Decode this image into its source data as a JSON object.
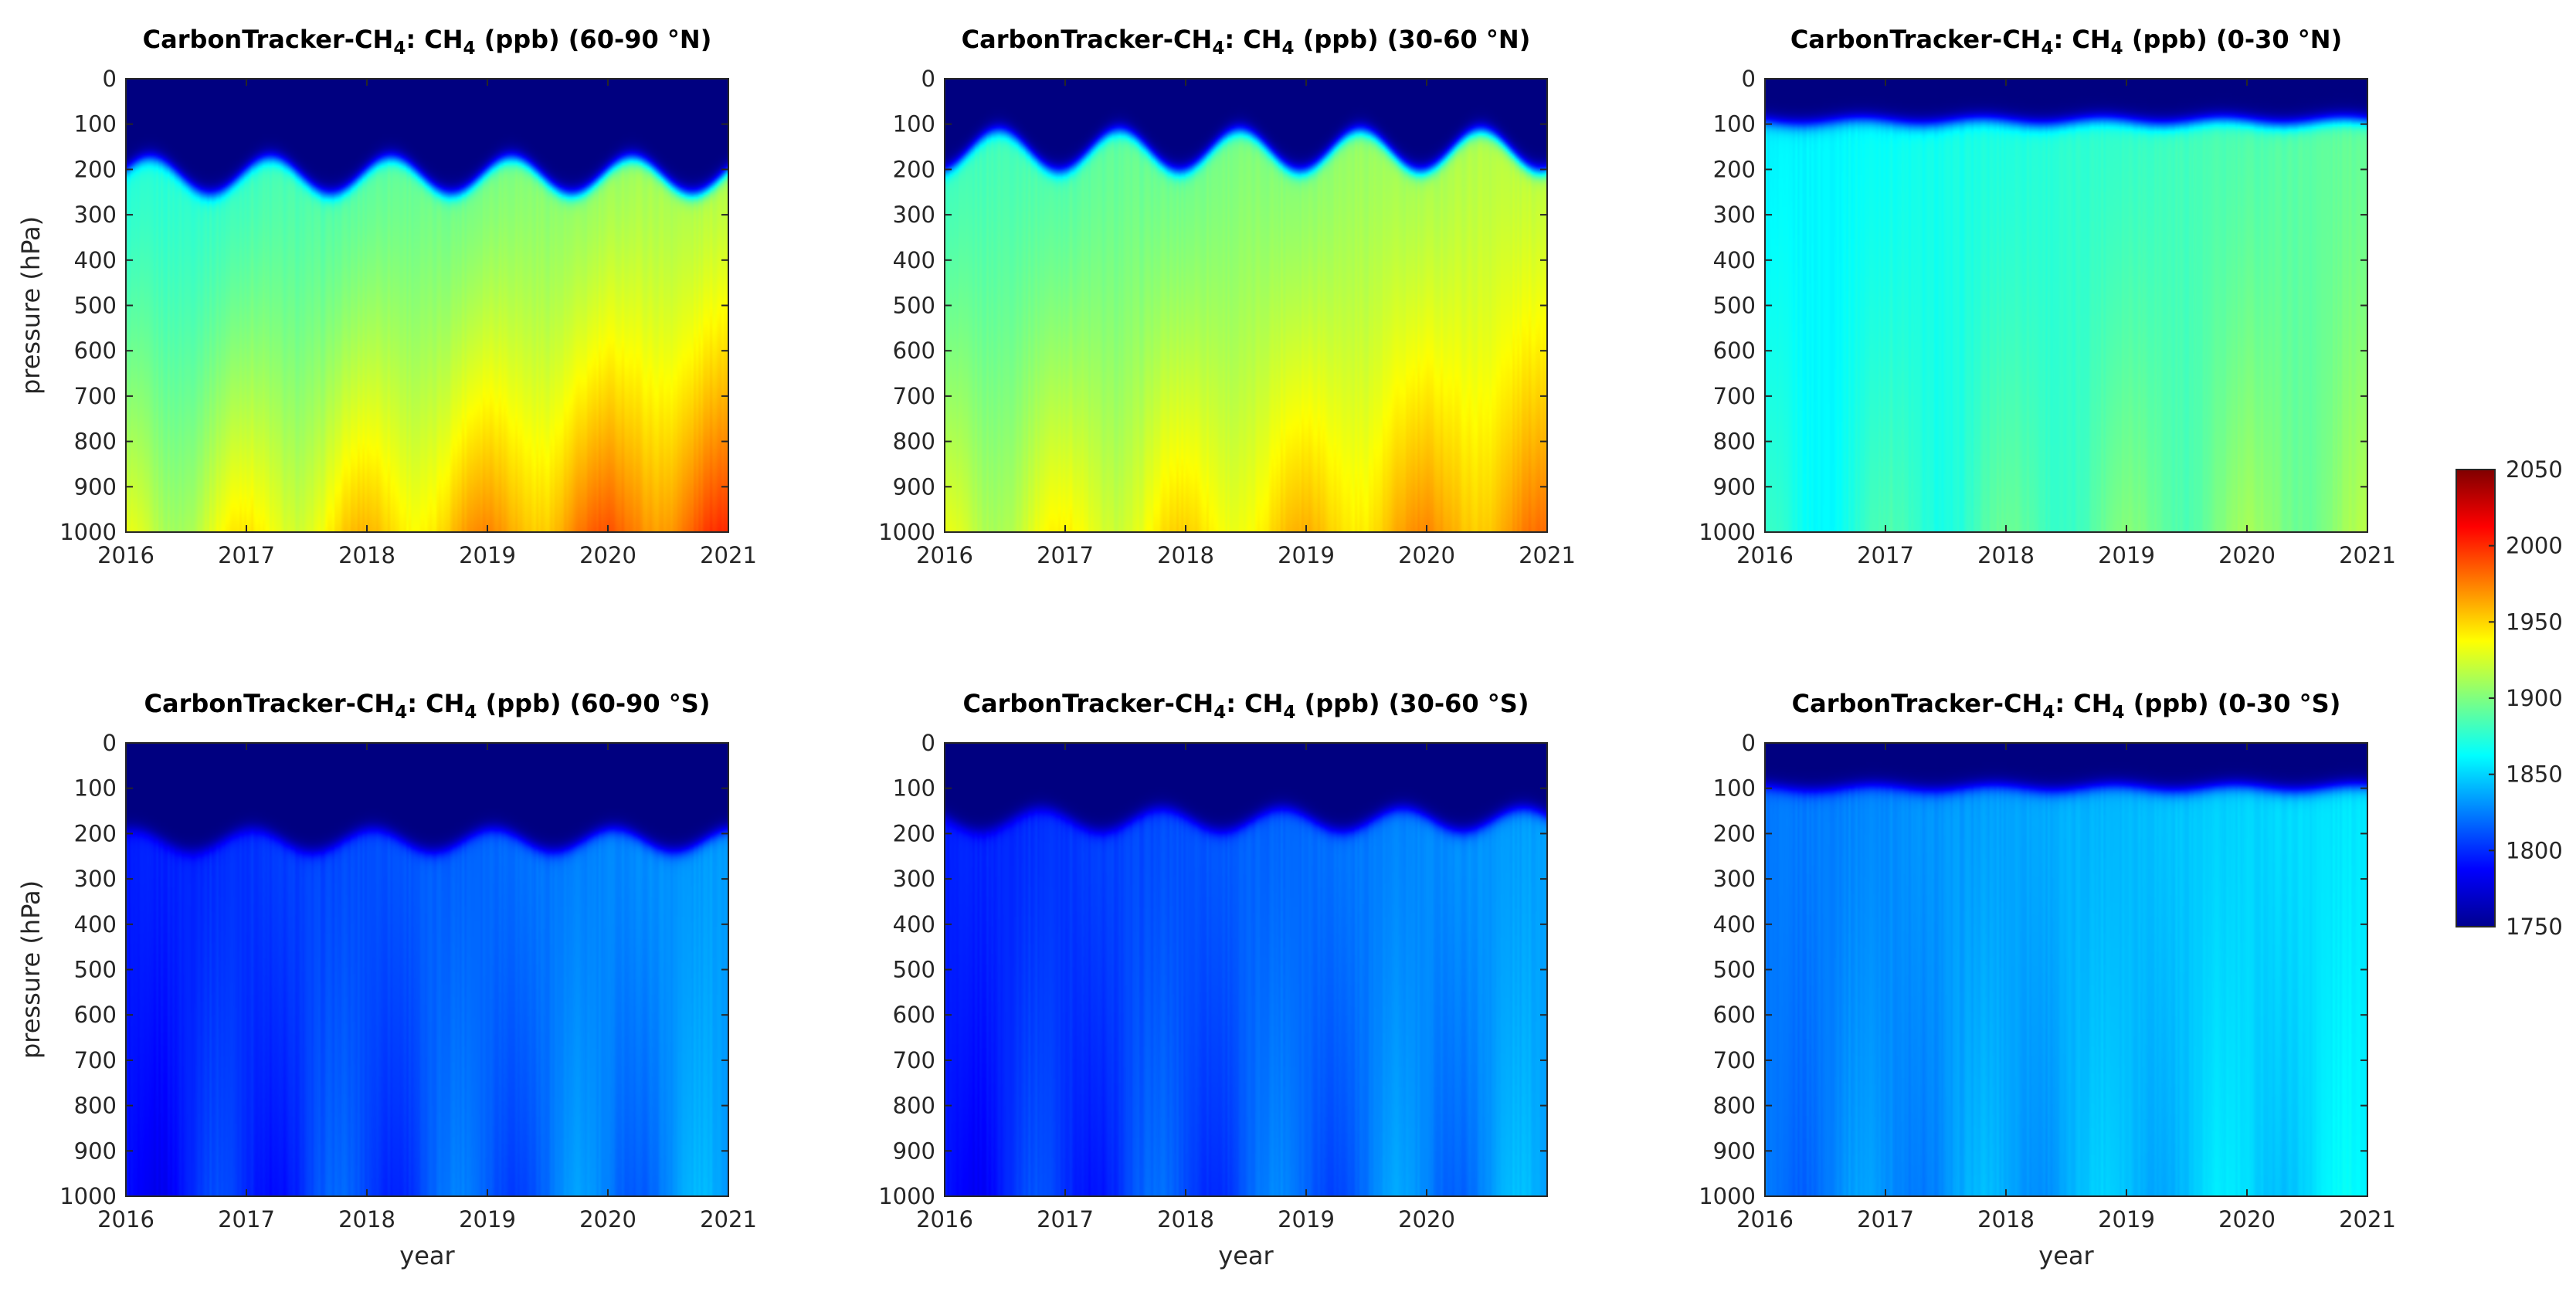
{
  "chart_data": [
    {
      "type": "heatmap",
      "region": "60-90 °N",
      "title": {
        "pre": "CarbonTracker-CH",
        "sub1": "4",
        "mid": ": CH",
        "sub2": "4",
        "post": " (ppb) (60-90 °N)"
      },
      "xlabel": "",
      "ylabel": "pressure (hPa)",
      "xlim": [
        2016,
        2021
      ],
      "ylim": [
        1000,
        0
      ],
      "xticks": [
        "2016",
        "2017",
        "2018",
        "2019",
        "2020",
        "2021"
      ],
      "yticks": [
        "0",
        "100",
        "200",
        "300",
        "400",
        "500",
        "600",
        "700",
        "800",
        "900",
        "1000"
      ],
      "tropopause_hPa": {
        "mean": 215,
        "seasonal_amplitude": 40,
        "peak_phase_year": 0.7
      },
      "surface_ppb": {
        "start": 1918,
        "trend_per_year": 14,
        "seasonal_amplitude": 14,
        "peak_phase_year": 0.95
      },
      "upper_troposphere_ppb": {
        "start": 1872,
        "trend_per_year": 9
      },
      "stratosphere_ppb": 1750
    },
    {
      "type": "heatmap",
      "region": "30-60 °N",
      "title": {
        "pre": "CarbonTracker-CH",
        "sub1": "4",
        "mid": ": CH",
        "sub2": "4",
        "post": " (ppb) (30-60 °N)"
      },
      "xlabel": "",
      "ylabel": "",
      "xlim": [
        2016,
        2021
      ],
      "ylim": [
        1000,
        0
      ],
      "xticks": [
        "2016",
        "2017",
        "2018",
        "2019",
        "2020",
        "2021"
      ],
      "yticks": [
        "0",
        "100",
        "200",
        "300",
        "400",
        "500",
        "600",
        "700",
        "800",
        "900",
        "1000"
      ],
      "tropopause_hPa": {
        "mean": 160,
        "seasonal_amplitude": 45,
        "peak_phase_year": 0.95
      },
      "surface_ppb": {
        "start": 1920,
        "trend_per_year": 10,
        "seasonal_amplitude": 12,
        "peak_phase_year": 0.95
      },
      "upper_troposphere_ppb": {
        "start": 1880,
        "trend_per_year": 8
      },
      "stratosphere_ppb": 1750
    },
    {
      "type": "heatmap",
      "region": "0-30 °N",
      "title": {
        "pre": "CarbonTracker-CH",
        "sub1": "4",
        "mid": ": CH",
        "sub2": "4",
        "post": " (ppb) (0-30 °N)"
      },
      "xlabel": "",
      "ylabel": "",
      "xlim": [
        2016,
        2021
      ],
      "ylim": [
        1000,
        0
      ],
      "xticks": [
        "2016",
        "2017",
        "2018",
        "2019",
        "2020",
        "2021"
      ],
      "yticks": [
        "0",
        "100",
        "200",
        "300",
        "400",
        "500",
        "600",
        "700",
        "800",
        "900",
        "1000"
      ],
      "tropopause_hPa": {
        "mean": 95,
        "seasonal_amplitude": 6,
        "peak_phase_year": 0.3
      },
      "surface_ppb": {
        "start": 1868,
        "trend_per_year": 8,
        "seasonal_amplitude": 10,
        "peak_phase_year": 0.0
      },
      "upper_troposphere_ppb": {
        "start": 1858,
        "trend_per_year": 7
      },
      "stratosphere_ppb": 1750
    },
    {
      "type": "heatmap",
      "region": "60-90 °S",
      "title": {
        "pre": "CarbonTracker-CH",
        "sub1": "4",
        "mid": ": CH",
        "sub2": "4",
        "post": " (ppb) (60-90 °S)"
      },
      "xlabel": "year",
      "ylabel": "pressure (hPa)",
      "xlim": [
        2016,
        2021
      ],
      "ylim": [
        1000,
        0
      ],
      "xticks": [
        "2016",
        "2017",
        "2018",
        "2019",
        "2020",
        "2021"
      ],
      "yticks": [
        "0",
        "100",
        "200",
        "300",
        "400",
        "500",
        "600",
        "700",
        "800",
        "900",
        "1000"
      ],
      "tropopause_hPa": {
        "mean": 215,
        "seasonal_amplitude": 25,
        "peak_phase_year": 0.55
      },
      "surface_ppb": {
        "start": 1792,
        "trend_per_year": 8,
        "seasonal_amplitude": 12,
        "peak_phase_year": 0.75
      },
      "upper_troposphere_ppb": {
        "start": 1795,
        "trend_per_year": 8
      },
      "stratosphere_ppb": 1750
    },
    {
      "type": "heatmap",
      "region": "30-60 °S",
      "title": {
        "pre": "CarbonTracker-CH",
        "sub1": "4",
        "mid": ": CH",
        "sub2": "4",
        "post": " (ppb) (30-60 °S)"
      },
      "xlabel": "year",
      "ylabel": "",
      "xlim": [
        2016,
        2021
      ],
      "ylim": [
        1000,
        0
      ],
      "xticks": [
        "2016",
        "2017",
        "2018",
        "2019",
        "2020"
      ],
      "yticks": [
        "0",
        "100",
        "200",
        "300",
        "400",
        "500",
        "600",
        "700",
        "800",
        "900",
        "1000"
      ],
      "tropopause_hPa": {
        "mean": 170,
        "seasonal_amplitude": 25,
        "peak_phase_year": 0.3
      },
      "surface_ppb": {
        "start": 1794,
        "trend_per_year": 8,
        "seasonal_amplitude": 12,
        "peak_phase_year": 0.75
      },
      "upper_troposphere_ppb": {
        "start": 1796,
        "trend_per_year": 8
      },
      "stratosphere_ppb": 1750
    },
    {
      "type": "heatmap",
      "region": "0-30 °S",
      "title": {
        "pre": "CarbonTracker-CH",
        "sub1": "4",
        "mid": ": CH",
        "sub2": "4",
        "post": " (ppb) (0-30 °S)"
      },
      "xlabel": "year",
      "ylabel": "",
      "xlim": [
        2016,
        2021
      ],
      "ylim": [
        1000,
        0
      ],
      "xticks": [
        "2016",
        "2017",
        "2018",
        "2019",
        "2020",
        "2021"
      ],
      "yticks": [
        "0",
        "100",
        "200",
        "300",
        "400",
        "500",
        "600",
        "700",
        "800",
        "900",
        "1000"
      ],
      "tropopause_hPa": {
        "mean": 100,
        "seasonal_amplitude": 6,
        "peak_phase_year": 0.4
      },
      "surface_ppb": {
        "start": 1822,
        "trend_per_year": 7,
        "seasonal_amplitude": 8,
        "peak_phase_year": 0.8
      },
      "upper_troposphere_ppb": {
        "start": 1822,
        "trend_per_year": 7
      },
      "stratosphere_ppb": 1750
    }
  ],
  "colorbar": {
    "colormap": "jet",
    "range": [
      1750,
      2050
    ],
    "ticks": [
      "1750",
      "1800",
      "1850",
      "1900",
      "1950",
      "2000",
      "2050"
    ]
  }
}
